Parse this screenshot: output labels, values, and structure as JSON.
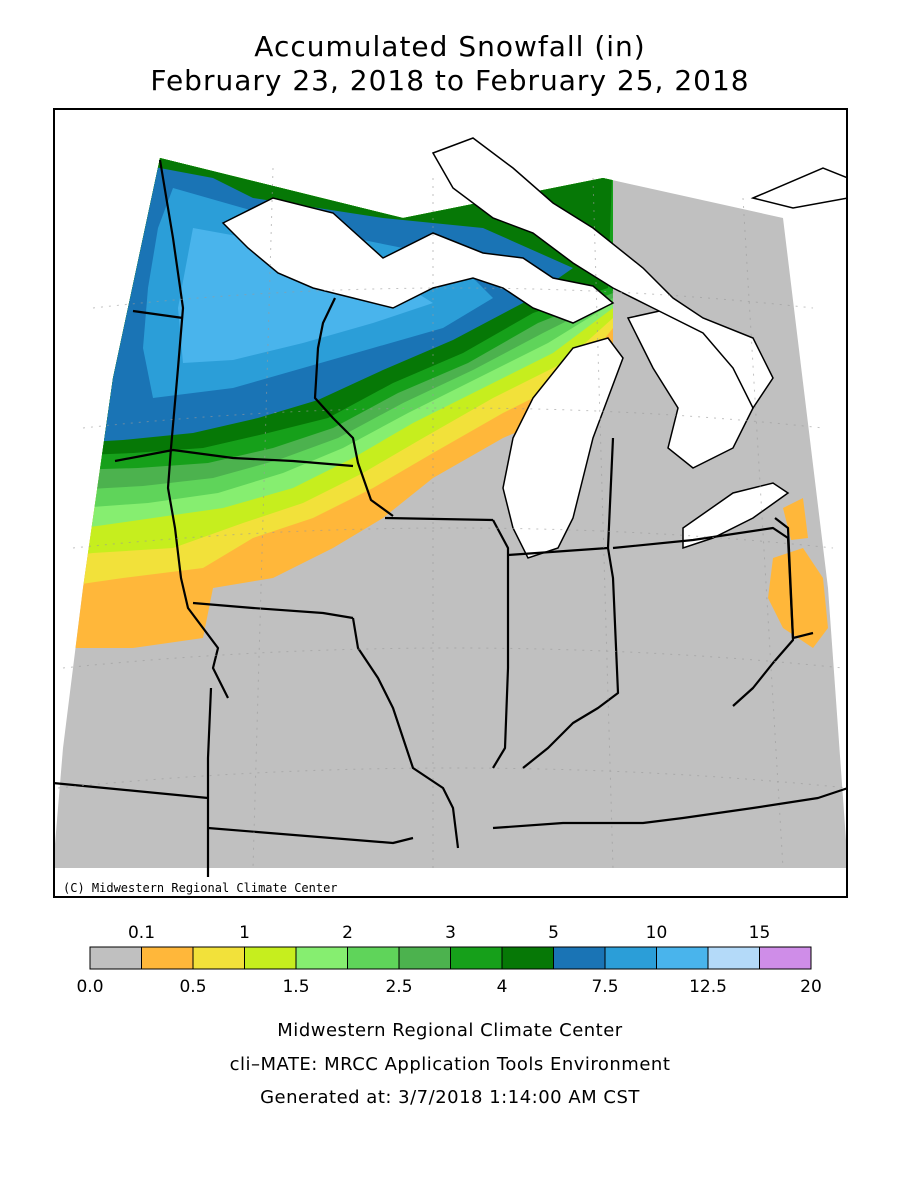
{
  "title": {
    "line1": "Accumulated Snowfall (in)",
    "line2": "February 23, 2018 to February 25, 2018"
  },
  "map": {
    "copyright": "(C) Midwestern Regional Climate Center"
  },
  "legend": {
    "top_labels": [
      "0.1",
      "1",
      "2",
      "3",
      "5",
      "10",
      "15"
    ],
    "bottom_labels": [
      "0.0",
      "0.5",
      "1.5",
      "2.5",
      "4",
      "7.5",
      "12.5",
      "20"
    ],
    "colors": [
      "#c0c0c0",
      "#ffb73a",
      "#f2e13a",
      "#c6ee1e",
      "#86ee70",
      "#5fd45a",
      "#4cb24e",
      "#16a01a",
      "#067806",
      "#1a74b5",
      "#2b9ed8",
      "#49b4ec",
      "#b4daf9",
      "#cf8de8"
    ]
  },
  "footer": {
    "line1": "Midwestern Regional Climate Center",
    "line2": "cli–MATE: MRCC Application Tools Environment",
    "line3": "Generated at: 3/7/2018 1:14:00 AM CST"
  }
}
